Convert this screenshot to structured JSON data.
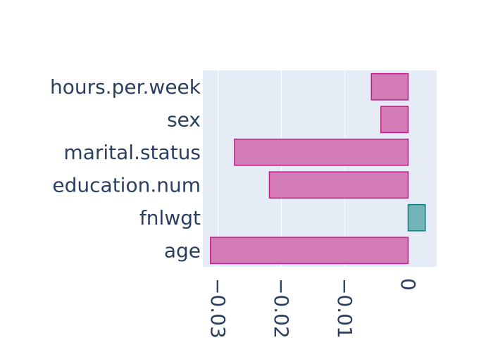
{
  "chart_data": {
    "type": "bar",
    "orientation": "horizontal",
    "categories": [
      "hours.per.week",
      "sex",
      "marital.status",
      "education.num",
      "fnlwgt",
      "age"
    ],
    "values": [
      -0.0058,
      -0.0043,
      -0.0274,
      -0.0219,
      0.0027,
      -0.0312
    ],
    "xlim": [
      -0.0324,
      0.0045
    ],
    "xticks": [
      -0.03,
      -0.02,
      -0.01,
      0
    ],
    "xtick_labels": [
      "−0.03",
      "−0.02",
      "−0.01",
      "0"
    ],
    "grid": true,
    "legend": "none",
    "colors": {
      "negative_fill": "#d47cb6",
      "negative_stroke": "#c51b8a",
      "positive_fill": "#72b5b9",
      "positive_stroke": "#0b8080",
      "plot_background": "#e5ecf6",
      "gridline": "#ffffff",
      "text": "#2a3f5f"
    }
  }
}
